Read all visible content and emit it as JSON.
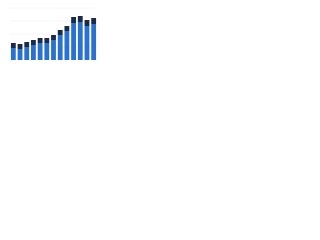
{
  "chart_data": {
    "type": "bar",
    "stacked": true,
    "categories": [
      null,
      null,
      null,
      null,
      null,
      null,
      null,
      null,
      null,
      null,
      null,
      null,
      null
    ],
    "series": [
      {
        "color": "#2b72d0",
        "values": [
          12,
          11,
          13,
          15,
          17,
          17,
          20,
          25,
          29,
          37,
          38,
          34,
          36
        ]
      },
      {
        "color": "#1b2a47",
        "values": [
          5,
          5,
          5,
          5,
          5,
          5,
          5,
          5,
          5,
          6,
          6,
          6,
          6
        ]
      }
    ],
    "ylim": [
      0,
      52
    ],
    "grid": true
  }
}
